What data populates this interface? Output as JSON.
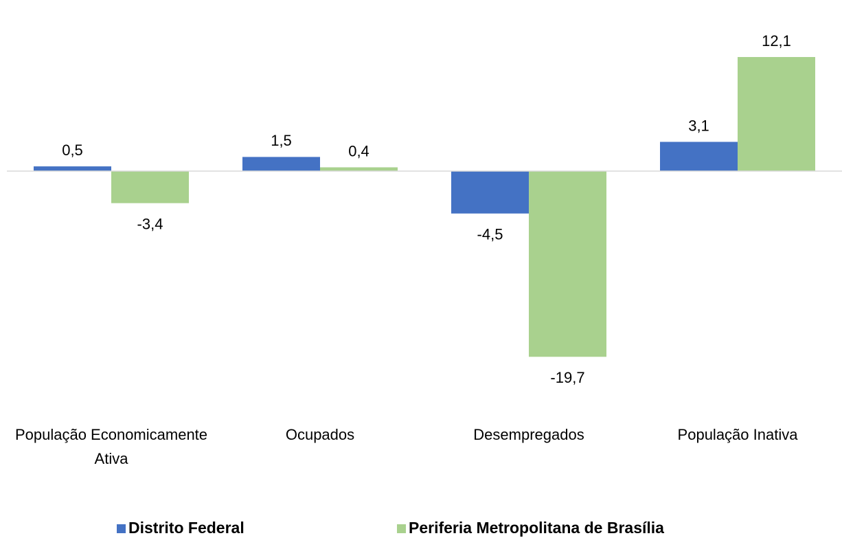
{
  "chart_data": {
    "type": "bar",
    "categories": [
      "População Economicamente Ativa",
      "Ocupados",
      "Desempregados",
      "População Inativa"
    ],
    "series": [
      {
        "name": "Distrito Federal",
        "color": "#4472c4",
        "values": [
          0.5,
          1.5,
          -4.5,
          3.1
        ],
        "value_labels": [
          "0,5",
          "1,5",
          "-4,5",
          "3,1"
        ]
      },
      {
        "name": "Periferia Metropolitana de Brasília",
        "color": "#a9d18e",
        "values": [
          -3.4,
          0.4,
          -19.7,
          12.1
        ],
        "value_labels": [
          "-3,4",
          "0,4",
          "-19,7",
          "12,1"
        ]
      }
    ],
    "legend": "bottom"
  }
}
